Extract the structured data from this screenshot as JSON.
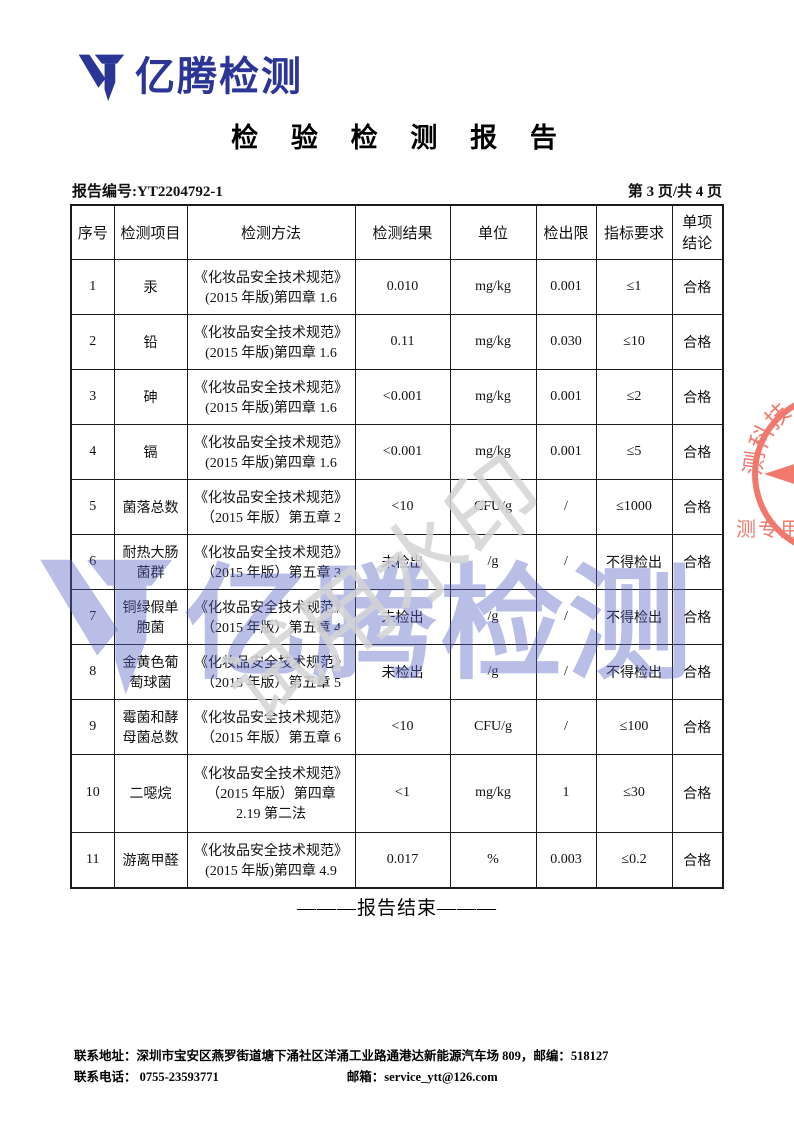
{
  "brand": {
    "name": "亿腾检测",
    "blue": "#2b3596"
  },
  "title": "检 验 检 测 报 告",
  "meta": {
    "report_no": "报告编号:YT2204792-1",
    "page_info": "第 3 页/共 4 页"
  },
  "table": {
    "headers": [
      "序号",
      "检测项目",
      "检测方法",
      "检测结果",
      "单位",
      "检出限",
      "指标要求",
      "单项\n结论"
    ],
    "rows": [
      {
        "no": "1",
        "item": "汞",
        "method": "《化妆品安全技术规范》\n(2015 年版)第四章 1.6",
        "result": "0.010",
        "unit": "mg/kg",
        "limit": "0.001",
        "requirement": "≤1",
        "conclusion": "合格"
      },
      {
        "no": "2",
        "item": "铅",
        "method": "《化妆品安全技术规范》\n(2015 年版)第四章 1.6",
        "result": "0.11",
        "unit": "mg/kg",
        "limit": "0.030",
        "requirement": "≤10",
        "conclusion": "合格"
      },
      {
        "no": "3",
        "item": "砷",
        "method": "《化妆品安全技术规范》\n(2015 年版)第四章 1.6",
        "result": "<0.001",
        "unit": "mg/kg",
        "limit": "0.001",
        "requirement": "≤2",
        "conclusion": "合格"
      },
      {
        "no": "4",
        "item": "镉",
        "method": "《化妆品安全技术规范》\n(2015 年版)第四章 1.6",
        "result": "<0.001",
        "unit": "mg/kg",
        "limit": "0.001",
        "requirement": "≤5",
        "conclusion": "合格"
      },
      {
        "no": "5",
        "item": "菌落总数",
        "method": "《化妆品安全技术规范》\n（2015 年版）第五章 2",
        "result": "<10",
        "unit": "CFU/g",
        "limit": "/",
        "requirement": "≤1000",
        "conclusion": "合格"
      },
      {
        "no": "6",
        "item": "耐热大肠\n菌群",
        "method": "《化妆品安全技术规范》\n（2015 年版）第五章 3",
        "result": "未检出",
        "unit": "/g",
        "limit": "/",
        "requirement": "不得检出",
        "conclusion": "合格"
      },
      {
        "no": "7",
        "item": "铜绿假单\n胞菌",
        "method": "《化妆品安全技术规范》\n（2015 年版）第五章 4",
        "result": "未检出",
        "unit": "/g",
        "limit": "/",
        "requirement": "不得检出",
        "conclusion": "合格"
      },
      {
        "no": "8",
        "item": "金黄色葡\n萄球菌",
        "method": "《化妆品安全技术规范》\n（2015 年版）第五章 5",
        "result": "未检出",
        "unit": "/g",
        "limit": "/",
        "requirement": "不得检出",
        "conclusion": "合格"
      },
      {
        "no": "9",
        "item": "霉菌和酵\n母菌总数",
        "method": "《化妆品安全技术规范》\n（2015 年版）第五章 6",
        "result": "<10",
        "unit": "CFU/g",
        "limit": "/",
        "requirement": "≤100",
        "conclusion": "合格"
      },
      {
        "no": "10",
        "item": "二噁烷",
        "method": "《化妆品安全技术规范》\n（2015 年版）第四章\n2.19 第二法",
        "result": "<1",
        "unit": "mg/kg",
        "limit": "1",
        "requirement": "≤30",
        "conclusion": "合格"
      },
      {
        "no": "11",
        "item": "游离甲醛",
        "method": "《化妆品安全技术规范》\n(2015 年版)第四章 4.9",
        "result": "0.017",
        "unit": "%",
        "limit": "0.003",
        "requirement": "≤0.2",
        "conclusion": "合格"
      }
    ]
  },
  "end_line": "———报告结束———",
  "footer": {
    "address": "联系地址：深圳市宝安区燕罗街道塘下涌社区洋涌工业路通港达新能源汽车场 809，邮编：518127",
    "phone": "联系电话： 0755-23593771",
    "email": "邮箱：service_ytt@126.com"
  },
  "watermarks": {
    "diagonal_text": "试用水印",
    "logo_text": "亿腾检测",
    "stamp_arc_text": "测科技",
    "stamp_bottom_text": "测专用章",
    "stamp_red": "#ef6a5e",
    "watermark_blue": "rgba(88,100,198,0.42)"
  }
}
